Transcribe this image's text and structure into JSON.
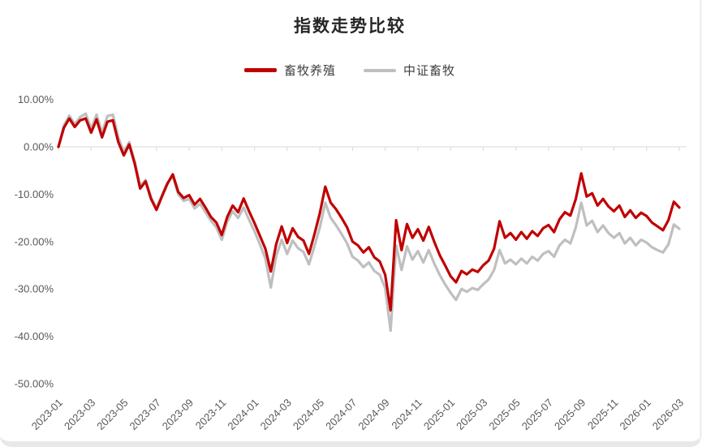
{
  "chart": {
    "title": "指数走势比较"
  },
  "chart_data": {
    "type": "line",
    "title": "指数走势比较",
    "xlabel": "",
    "ylabel": "",
    "unit": "percent",
    "grid": "zero-line-only",
    "legend_position": "top-center",
    "axis_color": "#d9d9d9",
    "tick_text_color": "#595959",
    "ylim": [
      -50,
      10
    ],
    "y_tick_values": [
      10,
      0,
      -10,
      -20,
      -30,
      -40,
      -50
    ],
    "y_tick_labels": [
      "10.00%",
      "0.00%",
      "-10.00%",
      "-20.00%",
      "-30.00%",
      "-40.00%",
      "-50.00%"
    ],
    "x_months_span": 38,
    "x_tick_every_months": 2,
    "x_tick_labels": [
      "2023-01",
      "2023-03",
      "2023-05",
      "2023-07",
      "2023-09",
      "2023-11",
      "2024-01",
      "2024-03",
      "2024-05",
      "2024-07",
      "2024-09",
      "2024-11",
      "2025-01",
      "2025-03",
      "2025-05",
      "2025-07",
      "2025-09",
      "2025-11",
      "2026-01",
      "2026-03"
    ],
    "points_per_month": 3,
    "series": [
      {
        "name": "畜牧养殖",
        "color": "#c00000",
        "stroke_width": 3.2,
        "values": [
          0.0,
          4.0,
          6.0,
          4.2,
          5.6,
          6.0,
          3.0,
          5.8,
          2.0,
          5.3,
          5.6,
          1.0,
          -1.8,
          0.5,
          -3.5,
          -8.8,
          -7.3,
          -11.0,
          -13.3,
          -10.5,
          -7.8,
          -5.8,
          -9.5,
          -10.8,
          -10.2,
          -12.2,
          -11.0,
          -12.8,
          -14.8,
          -16.0,
          -18.6,
          -14.8,
          -12.4,
          -13.8,
          -10.9,
          -13.6,
          -16.1,
          -18.8,
          -21.5,
          -26.3,
          -20.5,
          -16.8,
          -20.3,
          -17.2,
          -19.0,
          -19.8,
          -22.6,
          -18.5,
          -14.0,
          -8.4,
          -11.8,
          -13.2,
          -15.0,
          -17.0,
          -20.0,
          -20.8,
          -22.3,
          -21.2,
          -23.3,
          -24.2,
          -27.0,
          -34.5,
          -15.5,
          -21.8,
          -16.3,
          -19.2,
          -17.4,
          -19.8,
          -16.9,
          -20.0,
          -22.8,
          -25.0,
          -27.3,
          -28.6,
          -26.2,
          -26.9,
          -25.9,
          -26.4,
          -25.0,
          -24.0,
          -21.5,
          -15.7,
          -19.2,
          -18.2,
          -19.6,
          -18.0,
          -19.4,
          -17.8,
          -18.8,
          -17.2,
          -16.5,
          -18.0,
          -15.3,
          -13.8,
          -14.5,
          -11.0,
          -5.6,
          -10.5,
          -9.8,
          -12.4,
          -11.0,
          -12.6,
          -13.6,
          -12.4,
          -14.8,
          -13.4,
          -15.0,
          -13.9,
          -14.6,
          -16.0,
          -16.8,
          -17.6,
          -15.5,
          -11.6,
          -12.8
        ]
      },
      {
        "name": "中证畜牧",
        "color": "#bfbfbf",
        "stroke_width": 3.2,
        "values": [
          0.0,
          4.5,
          6.6,
          4.8,
          6.3,
          7.0,
          3.8,
          6.8,
          3.0,
          6.5,
          6.8,
          2.0,
          -1.2,
          1.0,
          -3.0,
          -8.2,
          -7.0,
          -10.6,
          -13.0,
          -10.2,
          -7.6,
          -6.2,
          -10.0,
          -11.4,
          -11.0,
          -13.0,
          -12.0,
          -13.8,
          -15.6,
          -17.0,
          -19.6,
          -15.8,
          -13.6,
          -15.0,
          -12.8,
          -15.4,
          -17.8,
          -20.6,
          -23.6,
          -29.7,
          -23.0,
          -19.6,
          -22.6,
          -19.8,
          -21.4,
          -22.2,
          -24.8,
          -21.0,
          -17.0,
          -11.8,
          -15.0,
          -16.6,
          -18.4,
          -20.4,
          -23.2,
          -24.0,
          -25.4,
          -24.4,
          -26.2,
          -27.0,
          -29.8,
          -38.8,
          -20.8,
          -26.0,
          -21.0,
          -23.8,
          -22.0,
          -24.4,
          -21.8,
          -24.6,
          -27.0,
          -29.0,
          -30.8,
          -32.3,
          -30.0,
          -30.6,
          -29.8,
          -30.2,
          -29.0,
          -28.0,
          -26.0,
          -21.8,
          -24.6,
          -23.8,
          -24.8,
          -23.6,
          -24.6,
          -23.2,
          -24.0,
          -22.6,
          -22.0,
          -23.2,
          -20.8,
          -19.6,
          -20.4,
          -17.0,
          -11.8,
          -16.6,
          -15.6,
          -18.0,
          -16.6,
          -18.2,
          -19.2,
          -18.2,
          -20.4,
          -19.2,
          -20.8,
          -19.6,
          -20.2,
          -21.2,
          -21.8,
          -22.3,
          -20.6,
          -16.4,
          -17.3
        ]
      }
    ]
  }
}
